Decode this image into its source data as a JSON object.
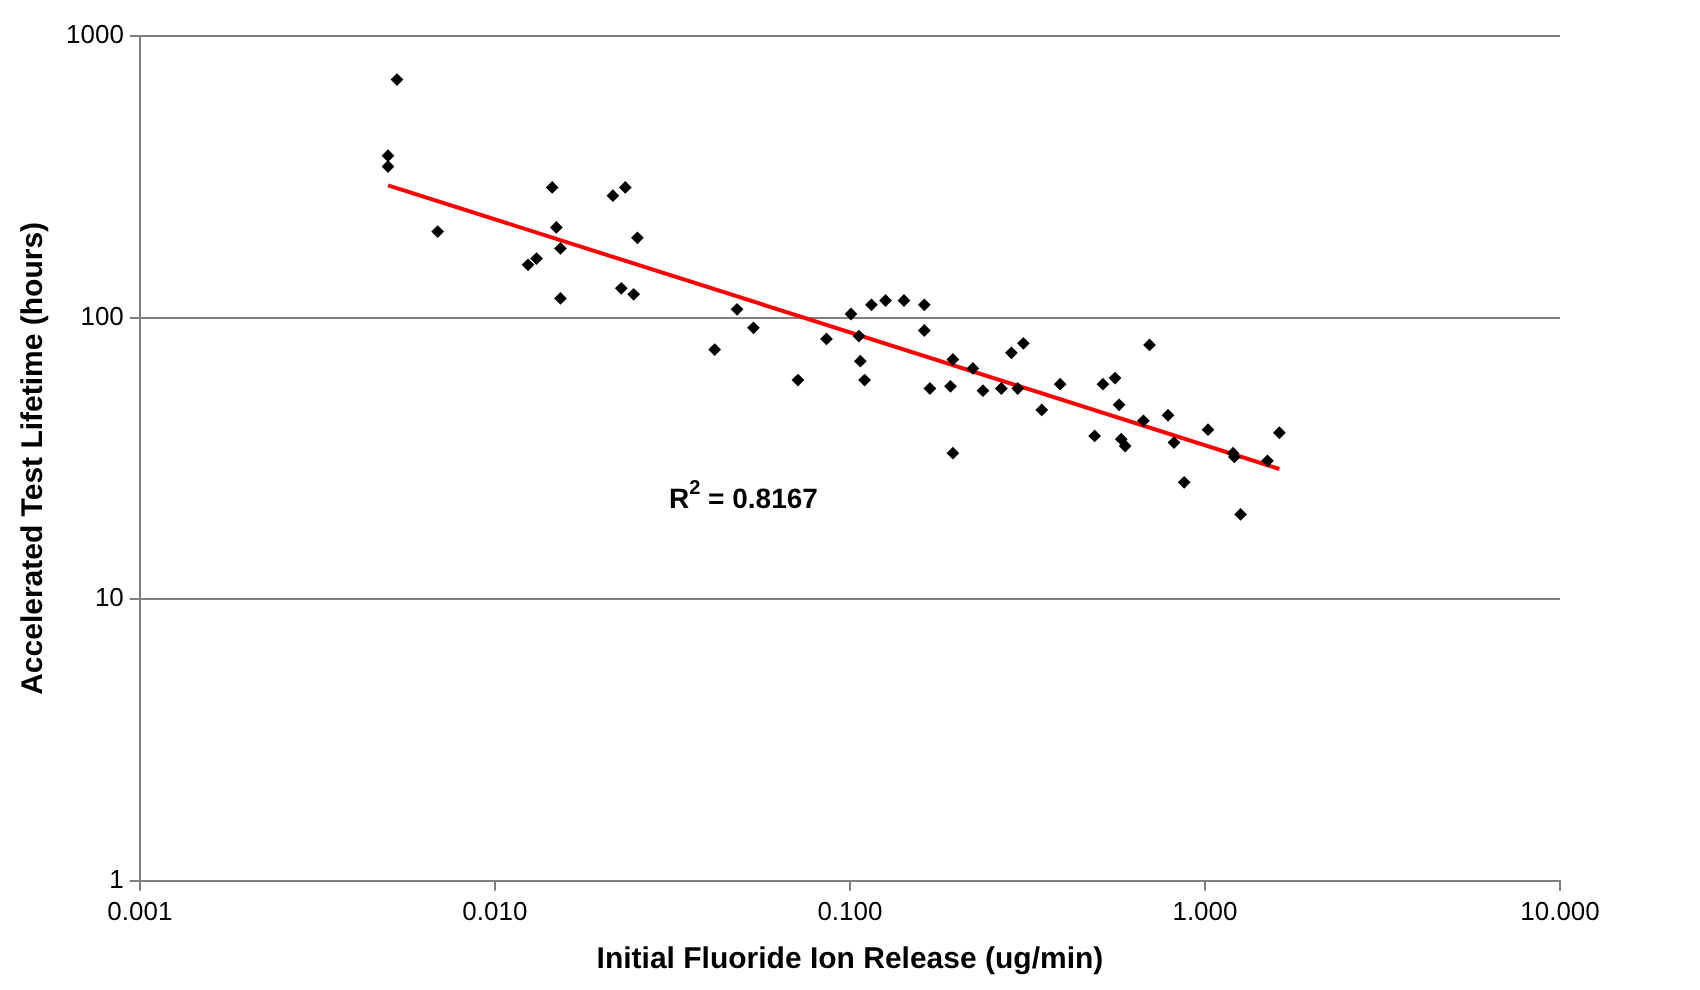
{
  "chart_data": {
    "type": "scatter",
    "xlabel": "Initial Fluoride Ion Release (ug/min)",
    "ylabel": "Accelerated Test Lifetime (hours)",
    "log": "xy",
    "grid": "y",
    "legend": false,
    "marker": "diamond",
    "xlim": [
      0.001,
      10
    ],
    "ylim": [
      1,
      1000
    ],
    "xticks": [
      {
        "value": 0.001,
        "label": "0.001"
      },
      {
        "value": 0.01,
        "label": "0.010"
      },
      {
        "value": 0.1,
        "label": "0.100"
      },
      {
        "value": 1,
        "label": "1.000"
      },
      {
        "value": 10,
        "label": "10.000"
      }
    ],
    "yticks": [
      1,
      10,
      100,
      1000
    ],
    "series": [
      {
        "type": "scatter",
        "color": "#000000",
        "x": [
          0.0053,
          0.005,
          0.005,
          0.0069,
          0.0124,
          0.0131,
          0.0145,
          0.0149,
          0.0153,
          0.0153,
          0.0215,
          0.0233,
          0.0252,
          0.0227,
          0.0246,
          0.0416,
          0.0481,
          0.0535,
          0.0714,
          0.0859,
          0.1007,
          0.107,
          0.11,
          0.106,
          0.115,
          0.126,
          0.142,
          0.162,
          0.168,
          0.162,
          0.195,
          0.192,
          0.195,
          0.222,
          0.237,
          0.285,
          0.308,
          0.267,
          0.297,
          0.347,
          0.391,
          0.489,
          0.516,
          0.558,
          0.573,
          0.581,
          0.596,
          0.671,
          0.698,
          0.787,
          0.818,
          0.874,
          1.02,
          1.2,
          1.26,
          1.21,
          1.62,
          1.5
        ],
        "values": [
          700,
          376,
          344,
          202,
          154,
          162,
          290,
          209,
          176,
          117,
          271,
          290,
          192,
          127,
          121,
          77,
          107,
          92,
          60,
          84,
          103,
          70,
          60,
          86,
          111,
          115,
          115,
          90,
          56,
          111,
          71,
          57,
          33,
          66,
          55,
          75,
          81,
          56,
          56,
          47,
          58,
          38,
          58,
          61,
          49,
          37,
          35,
          43,
          80,
          45,
          36,
          26,
          40,
          33,
          20,
          32,
          39,
          31
        ]
      },
      {
        "type": "line",
        "color": "#ff0000",
        "x": [
          0.005,
          1.62
        ],
        "values": [
          295,
          29
        ],
        "marker": "none"
      }
    ],
    "annotations": [
      "R$^{2}$ = 0.8167"
    ]
  }
}
